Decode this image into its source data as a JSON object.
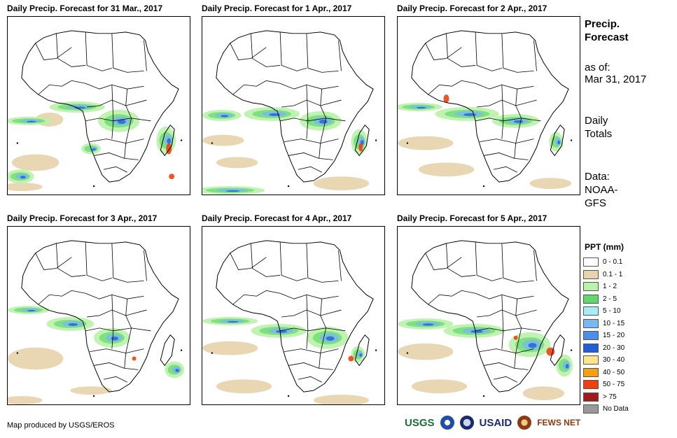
{
  "panels": [
    {
      "title": "Daily Precip. Forecast for 31 Mar., 2017"
    },
    {
      "title": "Daily Precip. Forecast for 1 Apr., 2017"
    },
    {
      "title": "Daily Precip. Forecast for 2 Apr., 2017"
    },
    {
      "title": "Daily Precip. Forecast for 3 Apr., 2017"
    },
    {
      "title": "Daily Precip. Forecast for 4 Apr., 2017"
    },
    {
      "title": "Daily Precip. Forecast for 5 Apr., 2017"
    }
  ],
  "sidebar": {
    "title_line1": "Precip.",
    "title_line2": "Forecast",
    "asof_label": "as of:",
    "asof_date": "Mar 31, 2017",
    "daily_line1": "Daily",
    "daily_line2": "Totals",
    "data_line1": "Data:",
    "data_line2": "NOAA-",
    "data_line3": "GFS"
  },
  "legend": {
    "title": "PPT (mm)",
    "items": [
      {
        "label": "0 - 0.1",
        "color": "#ffffff"
      },
      {
        "label": "0.1 - 1",
        "color": "#e8d5b0"
      },
      {
        "label": "1 - 2",
        "color": "#b9f2a8"
      },
      {
        "label": "2 - 5",
        "color": "#63d86a"
      },
      {
        "label": "5 - 10",
        "color": "#a8ecf6"
      },
      {
        "label": "10 - 15",
        "color": "#7ab8f2"
      },
      {
        "label": "15 - 20",
        "color": "#4a8fe8"
      },
      {
        "label": "20 - 30",
        "color": "#1f5fd8"
      },
      {
        "label": "30 - 40",
        "color": "#fde68a"
      },
      {
        "label": "40 - 50",
        "color": "#f5a010"
      },
      {
        "label": "50 - 75",
        "color": "#f04010"
      },
      {
        "label": "> 75",
        "color": "#a01c1c"
      },
      {
        "label": "No Data",
        "color": "#999999"
      }
    ]
  },
  "footer": {
    "credit": "Map produced by USGS/EROS",
    "logos": {
      "usgs": "USGS",
      "usaid": "USAID",
      "fews": "FEWS NET"
    }
  }
}
